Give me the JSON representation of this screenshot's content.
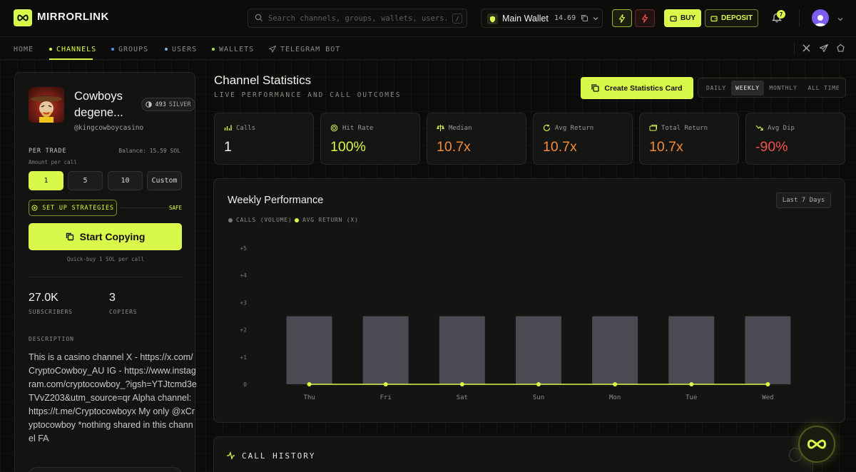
{
  "header": {
    "brand": "MIRRORLINK",
    "search_placeholder": "Search channels, groups, wallets, users...",
    "search_shortcut": "/",
    "wallet_name": "Main Wallet",
    "wallet_balance": "14.69",
    "buy_label": "BUY",
    "deposit_label": "DEPOSIT",
    "notification_count": "7"
  },
  "nav": {
    "items": [
      {
        "label": "HOME"
      },
      {
        "label": "CHANNELS"
      },
      {
        "label": "GROUPS"
      },
      {
        "label": "USERS"
      },
      {
        "label": "WALLETS"
      },
      {
        "label": "TELEGRAM BOT"
      }
    ]
  },
  "channel": {
    "title": "Cowboys degene...",
    "badge_count": "493",
    "badge_tier": "SILVER",
    "handle": "@kingcowboycasino",
    "per_trade_label": "PER TRADE",
    "balance_label": "Balance: 15.59 SOL",
    "amount_label": "Amount per call",
    "amounts": [
      "1",
      "5",
      "10",
      "Custom"
    ],
    "strategies_label": "SET UP STRATEGIES",
    "safe_label": "SAFE",
    "start_label": "Start Copying",
    "quick_label": "Quick-buy 1 SOL per call",
    "subscribers_value": "27.0K",
    "subscribers_label": "SUBSCRIBERS",
    "copiers_value": "3",
    "copiers_label": "COPIERS",
    "description_label": "DESCRIPTION",
    "description": "This is a casino channel X - https://x.com/CryptoCowboy_AU IG - https://www.instagram.com/cryptocowboy_?igsh=YTJtcmd3eTVvZ203&utm_source=qr Alpha channel: https://t.me/Cryptocowboyx My only @xCryptocowboy *nothing shared in this channel FA"
  },
  "stats": {
    "title": "Channel Statistics",
    "subtitle": "LIVE PERFORMANCE AND CALL OUTCOMES",
    "create_label": "Create Statistics Card",
    "periods": [
      "DAILY",
      "WEEKLY",
      "MONTHLY",
      "ALL TIME"
    ],
    "selected_period": "WEEKLY",
    "cards": [
      {
        "label": "Calls",
        "value": "1",
        "color": "#f0f0ec",
        "icon": "bar-chart-icon"
      },
      {
        "label": "Hit Rate",
        "value": "100%",
        "color": "#d9f94a",
        "icon": "target-icon"
      },
      {
        "label": "Median",
        "value": "10.7x",
        "color": "#f28a3c",
        "icon": "scale-icon"
      },
      {
        "label": "Avg Return",
        "value": "10.7x",
        "color": "#f28a3c",
        "icon": "refresh-icon"
      },
      {
        "label": "Total Return",
        "value": "10.7x",
        "color": "#f28a3c",
        "icon": "coins-icon"
      },
      {
        "label": "Avg Dip",
        "value": "-90%",
        "color": "#ef5350",
        "icon": "trend-down-icon"
      }
    ]
  },
  "performance": {
    "title": "Weekly Performance",
    "range_label": "Last 7 Days"
  },
  "chart_data": {
    "type": "bar",
    "categories": [
      "Thu",
      "Fri",
      "Sat",
      "Sun",
      "Mon",
      "Tue",
      "Wed"
    ],
    "series": [
      {
        "name": "CALLS (VOLUME)",
        "values": [
          2.5,
          2.5,
          2.5,
          2.5,
          2.5,
          2.5,
          2.5
        ],
        "color": "#4a4a52"
      },
      {
        "name": "AVG RETURN (X)",
        "values": [
          0,
          0,
          0,
          0,
          0,
          0,
          0
        ],
        "color": "#d9f94a"
      }
    ],
    "y_ticks": [
      "0",
      "+1",
      "+2",
      "+3",
      "+4",
      "+5"
    ],
    "ylim": [
      0,
      5
    ],
    "grid": false,
    "legend": "top-left"
  },
  "history": {
    "title": "CALL HISTORY"
  }
}
